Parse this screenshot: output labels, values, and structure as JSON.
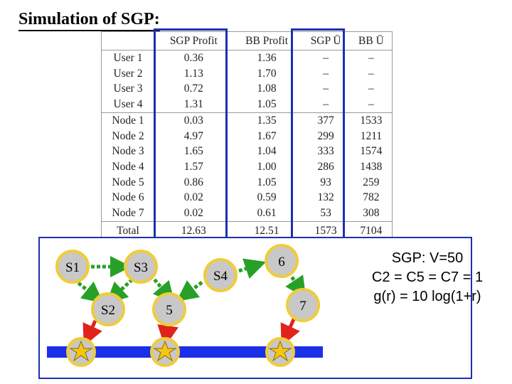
{
  "title": "Simulation of SGP:",
  "table": {
    "headers": [
      "",
      "SGP Profit",
      "BB Profit",
      "SGP Ū",
      "BB Ū"
    ],
    "rows": [
      [
        "User 1",
        "0.36",
        "1.36",
        "–",
        "–"
      ],
      [
        "User 2",
        "1.13",
        "1.70",
        "–",
        "–"
      ],
      [
        "User 3",
        "0.72",
        "1.08",
        "–",
        "–"
      ],
      [
        "User 4",
        "1.31",
        "1.05",
        "–",
        "–"
      ],
      [
        "Node 1",
        "0.03",
        "1.35",
        "377",
        "1533"
      ],
      [
        "Node 2",
        "4.97",
        "1.67",
        "299",
        "1211"
      ],
      [
        "Node 3",
        "1.65",
        "1.04",
        "333",
        "1574"
      ],
      [
        "Node 4",
        "1.57",
        "1.00",
        "286",
        "1438"
      ],
      [
        "Node 5",
        "0.86",
        "1.05",
        "93",
        "259"
      ],
      [
        "Node 6",
        "0.02",
        "0.59",
        "132",
        "782"
      ],
      [
        "Node 7",
        "0.02",
        "0.61",
        "53",
        "308"
      ]
    ],
    "total": [
      "Total",
      "12.63",
      "12.51",
      "1573",
      "7104"
    ]
  },
  "diagram": {
    "nodes": [
      "S1",
      "S2",
      "S3",
      "5",
      "S4",
      "6",
      "7"
    ]
  },
  "params": [
    "SGP: V=50",
    "C2 = C5 = C7 = 1",
    "g(r) = 10 log(1+r)"
  ],
  "colors": {
    "highlight": "#1f2fb0",
    "node_fill": "#c8c8c8",
    "node_ring": "#f0cc3a",
    "arrow": "#28a028",
    "down_arrow": "#e0231c",
    "bus": "#1a2fe6",
    "star": "#f5c518"
  }
}
